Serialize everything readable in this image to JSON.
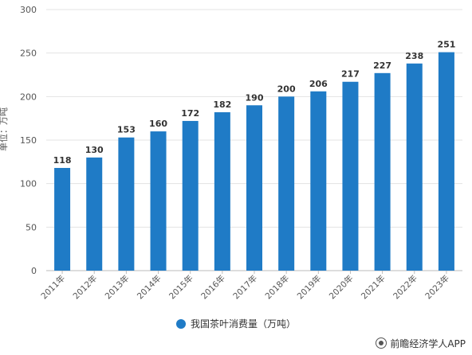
{
  "chart_data": {
    "type": "bar",
    "title": "",
    "xlabel": "",
    "ylabel": "单位：万吨",
    "ylim": [
      0,
      300
    ],
    "yticks": [
      0,
      50,
      100,
      150,
      200,
      250,
      300
    ],
    "grid": true,
    "legend_position": "bottom",
    "categories": [
      "2011年",
      "2012年",
      "2013年",
      "2014年",
      "2015年",
      "2016年",
      "2017年",
      "2018年",
      "2019年",
      "2020年",
      "2021年",
      "2022年",
      "2023年"
    ],
    "series": [
      {
        "name": "我国茶叶消费量（万吨）",
        "values": [
          118,
          130,
          153,
          160,
          172,
          182,
          190,
          200,
          206,
          217,
          227,
          238,
          251
        ],
        "color": "#1f7bc6"
      }
    ]
  },
  "source_credit": "前瞻经济学人APP"
}
